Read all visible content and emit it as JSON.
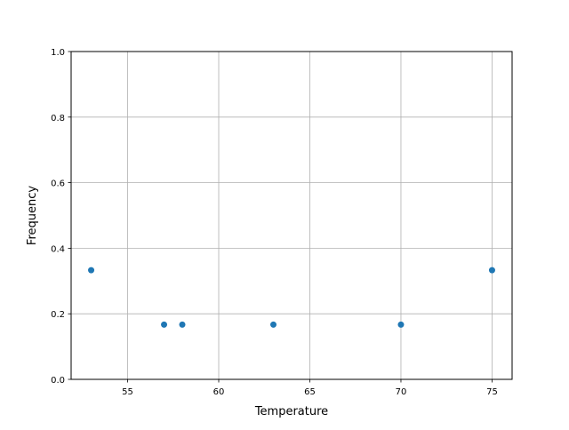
{
  "chart_data": {
    "type": "scatter",
    "title": "",
    "xlabel": "Temperature",
    "ylabel": "Frequency",
    "xlim": [
      51.9,
      76.1
    ],
    "ylim": [
      0,
      1
    ],
    "grid": true,
    "x_ticks": [
      55,
      60,
      65,
      70,
      75
    ],
    "x_tick_labels": [
      "55",
      "60",
      "65",
      "70",
      "75"
    ],
    "y_ticks": [
      0,
      0.2,
      0.4,
      0.6,
      0.8,
      1.0
    ],
    "y_tick_labels": [
      "0.0",
      "0.2",
      "0.4",
      "0.6",
      "0.8",
      "1.0"
    ],
    "series": [
      {
        "color": "#1f77b4",
        "x": [
          53,
          57,
          58,
          63,
          70,
          75
        ],
        "y": [
          0.333,
          0.167,
          0.167,
          0.167,
          0.167,
          0.333
        ]
      }
    ]
  }
}
